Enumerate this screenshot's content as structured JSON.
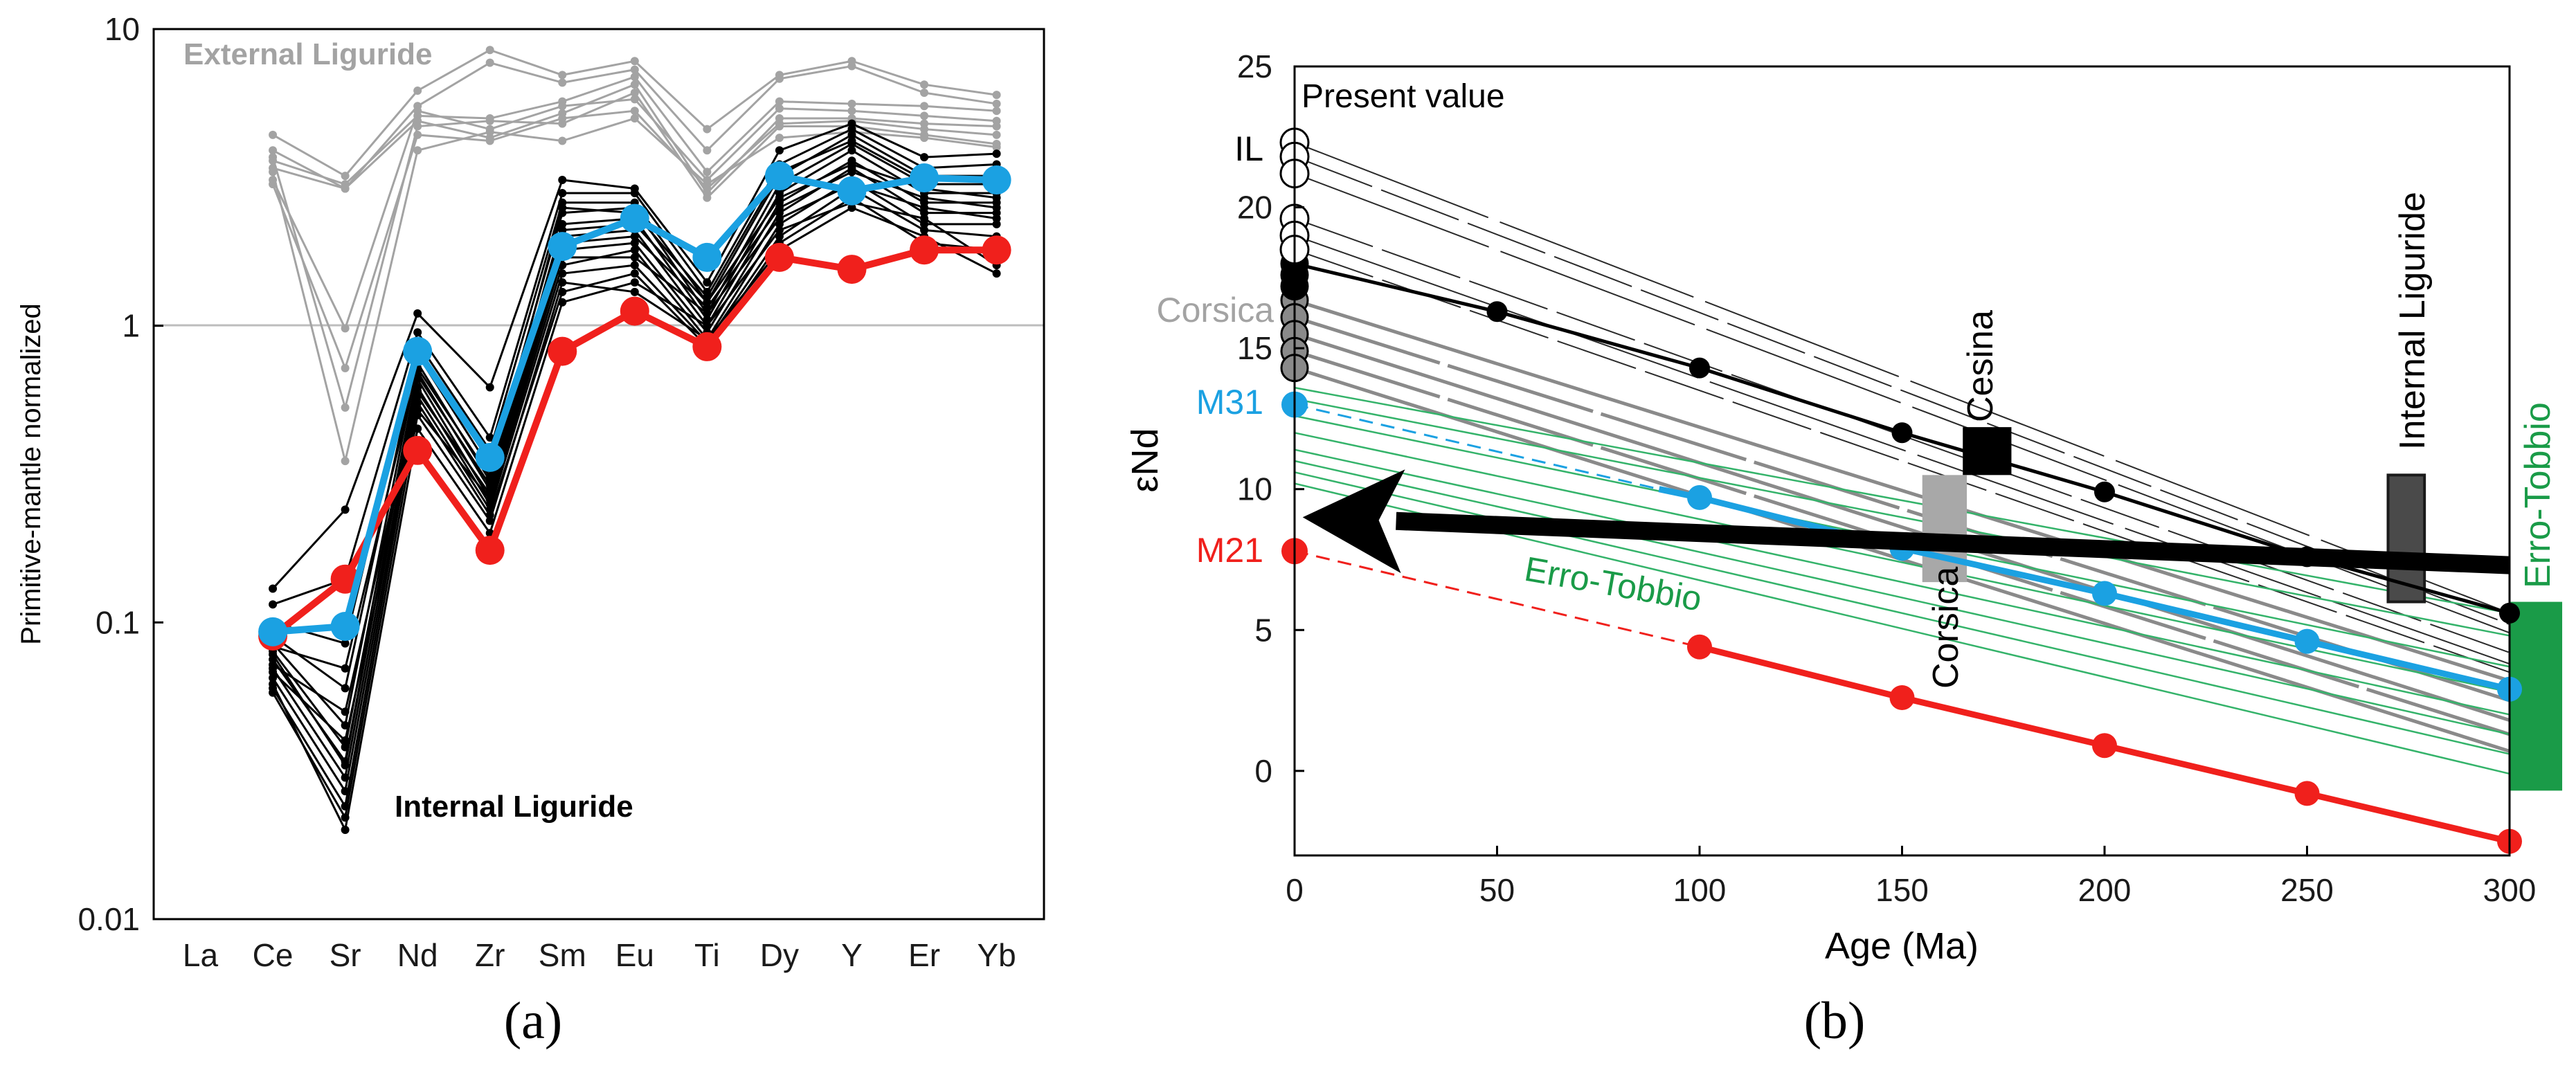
{
  "colors": {
    "ext": "#a3a3a3",
    "int": "#000000",
    "blue": "#1ba1e2",
    "red": "#f0201c",
    "green": "#1a9b48",
    "greenLine": "#34b36a",
    "corsica": "#8a8a8a",
    "grid": "#bdbdbd"
  },
  "panel_labels": {
    "a": "(a)",
    "b": "(b)"
  },
  "chart_data": [
    {
      "type": "line",
      "ylabel": "Primitive-mantle normalized",
      "yscale": "log",
      "ylim": [
        0.01,
        10
      ],
      "yticks": [
        {
          "v": 0.01,
          "label": "0.01"
        },
        {
          "v": 0.1,
          "label": "0.1"
        },
        {
          "v": 1,
          "label": "1"
        },
        {
          "v": 10,
          "label": "10"
        }
      ],
      "reference_line": 1,
      "categories": [
        "La",
        "Ce",
        "Sr",
        "Nd",
        "Zr",
        "Sm",
        "Eu",
        "Ti",
        "Dy",
        "Y",
        "Er",
        "Yb"
      ],
      "annotations": [
        {
          "id": "external",
          "text": "External Liguride"
        },
        {
          "id": "internal",
          "text": "Internal Liguride"
        }
      ],
      "series": [
        {
          "group": "external",
          "values": [
            null,
            4.4,
            3.2,
            6.2,
            8.5,
            7.0,
            7.8,
            4.6,
            7.0,
            7.8,
            6.5,
            6.0
          ]
        },
        {
          "group": "external",
          "values": [
            null,
            3.9,
            2.9,
            5.5,
            7.7,
            6.6,
            7.3,
            3.9,
            6.8,
            7.5,
            6.1,
            5.6
          ]
        },
        {
          "group": "external",
          "values": [
            null,
            3.6,
            3.0,
            5.1,
            5.0,
            5.7,
            6.9,
            3.3,
            5.7,
            5.6,
            5.5,
            5.3
          ]
        },
        {
          "group": "external",
          "values": [
            null,
            3.4,
            2.9,
            4.9,
            4.3,
            5.2,
            6.5,
            2.8,
            5.0,
            5.0,
            4.8,
            4.7
          ]
        },
        {
          "group": "external",
          "values": [
            null,
            3.1,
            0.98,
            5.3,
            4.6,
            5.5,
            5.8,
            3.1,
            5.4,
            5.3,
            5.1,
            4.9
          ]
        },
        {
          "group": "external",
          "values": [
            null,
            3.0,
            0.72,
            4.4,
            4.2,
            5.0,
            5.3,
            2.9,
            4.8,
            4.9,
            4.6,
            4.4
          ]
        },
        {
          "group": "external",
          "values": [
            null,
            3.7,
            0.53,
            4.7,
            4.9,
            4.8,
            6.1,
            2.7,
            4.7,
            4.7,
            4.4,
            4.1
          ]
        },
        {
          "group": "external",
          "values": [
            null,
            3.3,
            0.35,
            3.9,
            4.5,
            4.2,
            5.0,
            3.0,
            4.3,
            4.5,
            4.3,
            4.0
          ]
        },
        {
          "group": "internal",
          "values": [
            null,
            0.13,
            0.24,
            1.1,
            0.62,
            3.1,
            2.9,
            1.4,
            3.9,
            4.8,
            3.7,
            3.8
          ]
        },
        {
          "group": "internal",
          "values": [
            null,
            0.115,
            0.14,
            0.95,
            0.42,
            2.8,
            2.8,
            1.3,
            3.5,
            4.6,
            3.4,
            3.5
          ]
        },
        {
          "group": "internal",
          "values": [
            null,
            0.1,
            0.085,
            0.88,
            0.38,
            2.6,
            2.6,
            1.2,
            3.2,
            4.4,
            3.2,
            3.2
          ]
        },
        {
          "group": "internal",
          "values": [
            null,
            0.09,
            0.06,
            0.8,
            0.33,
            2.4,
            2.5,
            1.1,
            3.0,
            4.1,
            3.0,
            3.0
          ]
        },
        {
          "group": "internal",
          "values": [
            null,
            0.085,
            0.045,
            0.75,
            0.3,
            2.2,
            2.3,
            1.05,
            2.8,
            3.9,
            2.8,
            2.8
          ]
        },
        {
          "group": "internal",
          "values": [
            null,
            0.08,
            0.038,
            0.7,
            0.28,
            2.0,
            2.1,
            1.0,
            2.6,
            3.6,
            2.6,
            2.6
          ]
        },
        {
          "group": "internal",
          "values": [
            null,
            0.075,
            0.034,
            0.66,
            0.26,
            1.8,
            1.9,
            0.95,
            2.4,
            3.4,
            2.4,
            2.4
          ]
        },
        {
          "group": "internal",
          "values": [
            null,
            0.07,
            0.03,
            0.62,
            0.25,
            1.6,
            1.8,
            0.9,
            2.2,
            3.1,
            2.2,
            2.2
          ]
        },
        {
          "group": "internal",
          "values": [
            null,
            0.065,
            0.027,
            0.58,
            0.24,
            1.5,
            1.6,
            0.88,
            2.0,
            2.9,
            2.1,
            2.0
          ]
        },
        {
          "group": "internal",
          "values": [
            null,
            0.06,
            0.024,
            0.55,
            0.23,
            1.3,
            1.5,
            0.85,
            1.9,
            2.7,
            1.9,
            1.8
          ]
        },
        {
          "group": "internal",
          "values": [
            null,
            0.058,
            0.022,
            0.5,
            0.22,
            1.4,
            1.3,
            0.9,
            1.8,
            2.5,
            2.0,
            1.5
          ]
        },
        {
          "group": "internal",
          "values": [
            null,
            0.062,
            0.02,
            0.45,
            0.2,
            1.2,
            1.4,
            1.0,
            2.1,
            2.6,
            2.3,
            1.6
          ]
        },
        {
          "group": "internal",
          "values": [
            null,
            0.068,
            0.04,
            0.52,
            0.26,
            1.7,
            1.7,
            1.1,
            2.3,
            3.0,
            2.5,
            2.3
          ]
        },
        {
          "group": "internal",
          "values": [
            null,
            0.072,
            0.05,
            0.6,
            0.27,
            1.9,
            2.0,
            1.15,
            2.5,
            3.3,
            2.7,
            2.5
          ]
        },
        {
          "group": "internal",
          "values": [
            null,
            0.078,
            0.033,
            0.68,
            0.29,
            2.1,
            2.2,
            1.2,
            2.7,
            3.5,
            2.9,
            2.7
          ]
        },
        {
          "group": "internal",
          "values": [
            null,
            0.083,
            0.07,
            0.72,
            0.31,
            2.5,
            2.4,
            1.25,
            3.3,
            4.2,
            3.1,
            3.1
          ]
        },
        {
          "name": "M21",
          "group": "red",
          "values": [
            null,
            0.09,
            0.14,
            0.38,
            0.175,
            0.82,
            1.12,
            0.85,
            1.7,
            1.55,
            1.8,
            1.8
          ]
        },
        {
          "name": "M31",
          "group": "blue",
          "values": [
            null,
            0.093,
            0.097,
            0.82,
            0.36,
            1.85,
            2.3,
            1.7,
            3.2,
            2.85,
            3.15,
            3.1
          ]
        }
      ]
    },
    {
      "type": "line",
      "xlabel": "Age (Ma)",
      "ylabel": "εNd",
      "xlim": [
        0,
        300
      ],
      "ylim": [
        -3,
        25
      ],
      "xticks": [
        {
          "v": 0,
          "label": "0"
        },
        {
          "v": 50,
          "label": "50"
        },
        {
          "v": 100,
          "label": "100"
        },
        {
          "v": 150,
          "label": "150"
        },
        {
          "v": 200,
          "label": "200"
        },
        {
          "v": 250,
          "label": "250"
        },
        {
          "v": 300,
          "label": "300"
        }
      ],
      "yticks": [
        {
          "v": 0,
          "label": "0"
        },
        {
          "v": 5,
          "label": "5"
        },
        {
          "v": 10,
          "label": "10"
        },
        {
          "v": 15,
          "label": "15"
        },
        {
          "v": 20,
          "label": "20"
        },
        {
          "v": 25,
          "label": "25"
        }
      ],
      "present_points": {
        "IL": [
          22.3,
          21.8,
          21.2,
          19.6,
          19.0,
          18.5
        ],
        "black": [
          18.0,
          17.6,
          17.2
        ],
        "corsica": [
          16.7,
          16.1,
          15.5,
          14.9,
          14.3
        ]
      },
      "thin_black_lines": [
        [
          22.3,
          5.6
        ],
        [
          21.8,
          5.2
        ],
        [
          21.2,
          4.9
        ],
        [
          19.6,
          4.2
        ],
        [
          19.0,
          3.8
        ],
        [
          18.5,
          3.5
        ]
      ],
      "corsica_lines": [
        [
          16.7,
          3.2
        ],
        [
          16.1,
          2.5
        ],
        [
          15.5,
          1.8
        ],
        [
          14.9,
          1.3
        ],
        [
          14.3,
          0.7
        ]
      ],
      "erro_tobbio_lines": [
        [
          13.6,
          5.6
        ],
        [
          13.2,
          4.8
        ],
        [
          12.6,
          3.7
        ],
        [
          12.0,
          2.8
        ],
        [
          11.4,
          2.0
        ],
        [
          11.0,
          1.3
        ],
        [
          10.6,
          0.6
        ],
        [
          10.2,
          -0.1
        ]
      ],
      "black_series": {
        "x": [
          0,
          50,
          100,
          150,
          200,
          250,
          300
        ],
        "y": [
          18.0,
          16.3,
          14.3,
          12.0,
          9.9,
          7.6,
          5.6
        ]
      },
      "blue_series": {
        "x": [
          90,
          100,
          150,
          200,
          250,
          300
        ],
        "y": [
          10.0,
          9.7,
          7.9,
          6.3,
          4.6,
          2.9
        ]
      },
      "blue_dashed": {
        "x": [
          0,
          90
        ],
        "y": [
          13.0,
          10.0
        ]
      },
      "blue_start": {
        "x": 0,
        "y": 13.0
      },
      "red_series": {
        "x": [
          100,
          150,
          200,
          250,
          300
        ],
        "y": [
          4.4,
          2.6,
          0.9,
          -0.8,
          -2.5
        ]
      },
      "red_dashed": {
        "x": [
          0,
          100
        ],
        "y": [
          7.8,
          4.4
        ]
      },
      "red_start": {
        "x": 0,
        "y": 7.8
      },
      "arrow": {
        "from": [
          300,
          7.3
        ],
        "to": [
          2,
          9.0
        ]
      },
      "boxes": [
        {
          "id": "cesina",
          "x0": 165,
          "x1": 177,
          "y0": 10.5,
          "y1": 12.2,
          "color": "#000000"
        },
        {
          "id": "corsica",
          "x0": 155,
          "x1": 166,
          "y0": 6.7,
          "y1": 10.5,
          "color": "#a8a8a8"
        },
        {
          "id": "internal",
          "x0": 270,
          "x1": 279,
          "y0": 6.0,
          "y1": 10.5,
          "color": "#4a4a4a",
          "stroke": "#1a1a1a"
        },
        {
          "id": "erro",
          "x0": 300,
          "x1": 313,
          "y0": -0.7,
          "y1": 6.0,
          "color": "#1a9b48"
        }
      ],
      "labels": {
        "present_value": "Present value",
        "IL": "IL",
        "corsica_left": "Corsica",
        "M31": "M31",
        "M21": "M21",
        "cesina": "Cesina",
        "corsica_vert": "Corsica",
        "internal_liguride": "Internal Liguride",
        "erro_tobbio_vert": "Erro-Tobbio",
        "erro_tobbio_diag": "Erro-Tobbio"
      }
    }
  ]
}
